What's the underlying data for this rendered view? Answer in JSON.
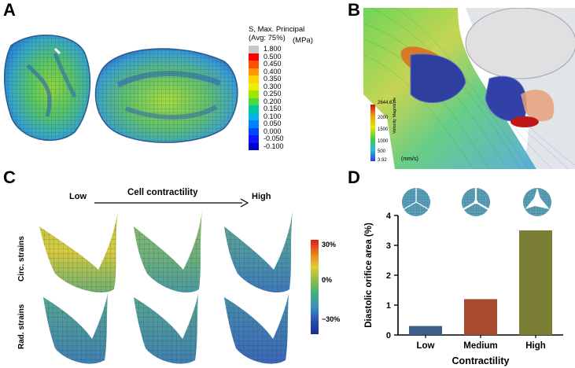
{
  "panels": {
    "a": {
      "letter": "A",
      "legend_title_1": "S, Max. Principal",
      "legend_title_2": "(Avg: 75%)",
      "legend_unit": "(MPa)",
      "legend_values": [
        "1.800",
        "0.500",
        "0.450",
        "0.400",
        "0.350",
        "0.300",
        "0.250",
        "0.200",
        "0.150",
        "0.100",
        "0.050",
        "0.000",
        "-0.050",
        "-0.100"
      ],
      "legend_colors": [
        "#c8c8c8",
        "#ff0000",
        "#ff5000",
        "#ff9a00",
        "#ffd200",
        "#e6f000",
        "#9ee600",
        "#46d846",
        "#00c8a0",
        "#00b4e6",
        "#0082ff",
        "#0046ff",
        "#1414ff",
        "#0000c8"
      ]
    },
    "b": {
      "letter": "B",
      "colorbar_max": "2644.67",
      "colorbar_ticks": [
        "2000",
        "1500",
        "1000",
        "500"
      ],
      "colorbar_min": "3.92",
      "colorbar_title": "Velocity Magnitude",
      "unit": "(mm/s)"
    },
    "c": {
      "letter": "C",
      "low_label": "Low",
      "axis_label": "Cell contractility",
      "high_label": "High",
      "row1_label": "Circ. strains",
      "row2_label": "Rad. strains",
      "scale_top": "30%",
      "scale_mid": "0%",
      "scale_bottom": "−30%"
    },
    "d": {
      "letter": "D"
    }
  },
  "chart_data": {
    "type": "bar",
    "categories": [
      "Low",
      "Medium",
      "High"
    ],
    "values": [
      0.3,
      1.2,
      3.5
    ],
    "colors": [
      "#3b5f8a",
      "#a84a30",
      "#7b7f35"
    ],
    "xlabel": "Contractility",
    "ylabel": "Diastolic orifice area (%)",
    "ylim": [
      0,
      4
    ],
    "yticks": [
      "0",
      "1",
      "2",
      "3",
      "4"
    ],
    "grid": false
  }
}
